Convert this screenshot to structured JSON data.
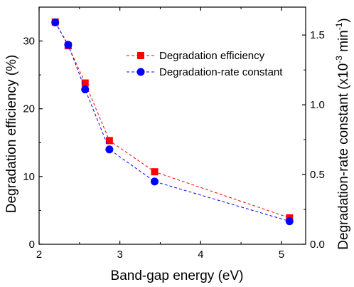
{
  "chart_data": {
    "type": "line",
    "x": [
      2.2,
      2.36,
      2.57,
      2.87,
      3.43,
      5.1
    ],
    "xlabel": "Band-gap energy (eV)",
    "xlim": [
      2,
      5.3
    ],
    "xticks": [
      2,
      3,
      4,
      5
    ],
    "y_left": {
      "label": "Degradation efficiency (%)",
      "lim": [
        0,
        35
      ],
      "ticks": [
        0,
        10,
        20,
        30
      ]
    },
    "y_right": {
      "label_main": "Degradation-rate constant (x10",
      "label_sup": "-3",
      "label_mid": " min",
      "label_sup2": "-1",
      "label_end": ")",
      "lim": [
        0,
        1.7
      ],
      "ticks": [
        "0.0",
        "0.5",
        "1.0",
        "1.5"
      ]
    },
    "series": [
      {
        "name": "Degradation efficiency",
        "axis": "left",
        "values": [
          32.8,
          29.3,
          23.8,
          15.3,
          10.7,
          3.9
        ],
        "color": "#ff0000",
        "marker": "square"
      },
      {
        "name": "Degradation-rate constant",
        "axis": "right",
        "values": [
          1.59,
          1.43,
          1.11,
          0.68,
          0.45,
          0.165
        ],
        "color": "#0000ff",
        "marker": "circle"
      }
    ],
    "legend_position": "top-right",
    "grid": false
  }
}
